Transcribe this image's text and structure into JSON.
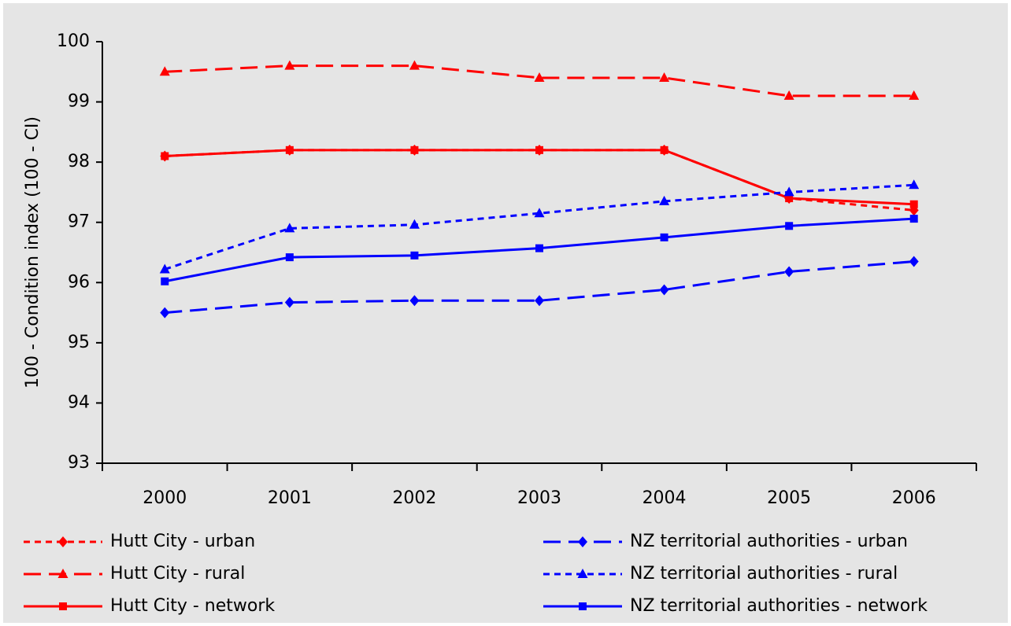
{
  "chart_data": {
    "type": "line",
    "y_label": "100 - Condition index (100 - CI)",
    "categories": [
      "2000",
      "2001",
      "2002",
      "2003",
      "2004",
      "2005",
      "2006"
    ],
    "ylim": [
      93,
      100
    ],
    "yticks": [
      93,
      94,
      95,
      96,
      97,
      98,
      99,
      100
    ],
    "series": [
      {
        "name": "Hutt City - urban",
        "color": "#ff0000",
        "dash": "dotted",
        "marker": "diamond",
        "values": [
          98.1,
          98.2,
          98.2,
          98.2,
          98.2,
          97.4,
          97.2
        ]
      },
      {
        "name": "Hutt City - rural",
        "color": "#ff0000",
        "dash": "dashed",
        "marker": "triangle",
        "values": [
          99.5,
          99.6,
          99.6,
          99.4,
          99.4,
          99.1,
          99.1
        ]
      },
      {
        "name": "Hutt City - network",
        "color": "#ff0000",
        "dash": "solid",
        "marker": "square",
        "values": [
          98.1,
          98.2,
          98.2,
          98.2,
          98.2,
          97.4,
          97.3
        ]
      },
      {
        "name": "NZ territorial authorities - urban",
        "color": "#0000ff",
        "dash": "dashed",
        "marker": "diamond",
        "values": [
          95.5,
          95.67,
          95.7,
          95.7,
          95.88,
          96.18,
          96.35
        ]
      },
      {
        "name": "NZ territorial authorities - rural",
        "color": "#0000ff",
        "dash": "dotted",
        "marker": "triangle",
        "values": [
          96.22,
          96.9,
          96.96,
          97.15,
          97.35,
          97.5,
          97.62
        ]
      },
      {
        "name": "NZ territorial authorities - network",
        "color": "#0000ff",
        "dash": "solid",
        "marker": "square",
        "values": [
          96.02,
          96.42,
          96.45,
          96.57,
          96.75,
          96.94,
          97.06
        ]
      }
    ]
  }
}
